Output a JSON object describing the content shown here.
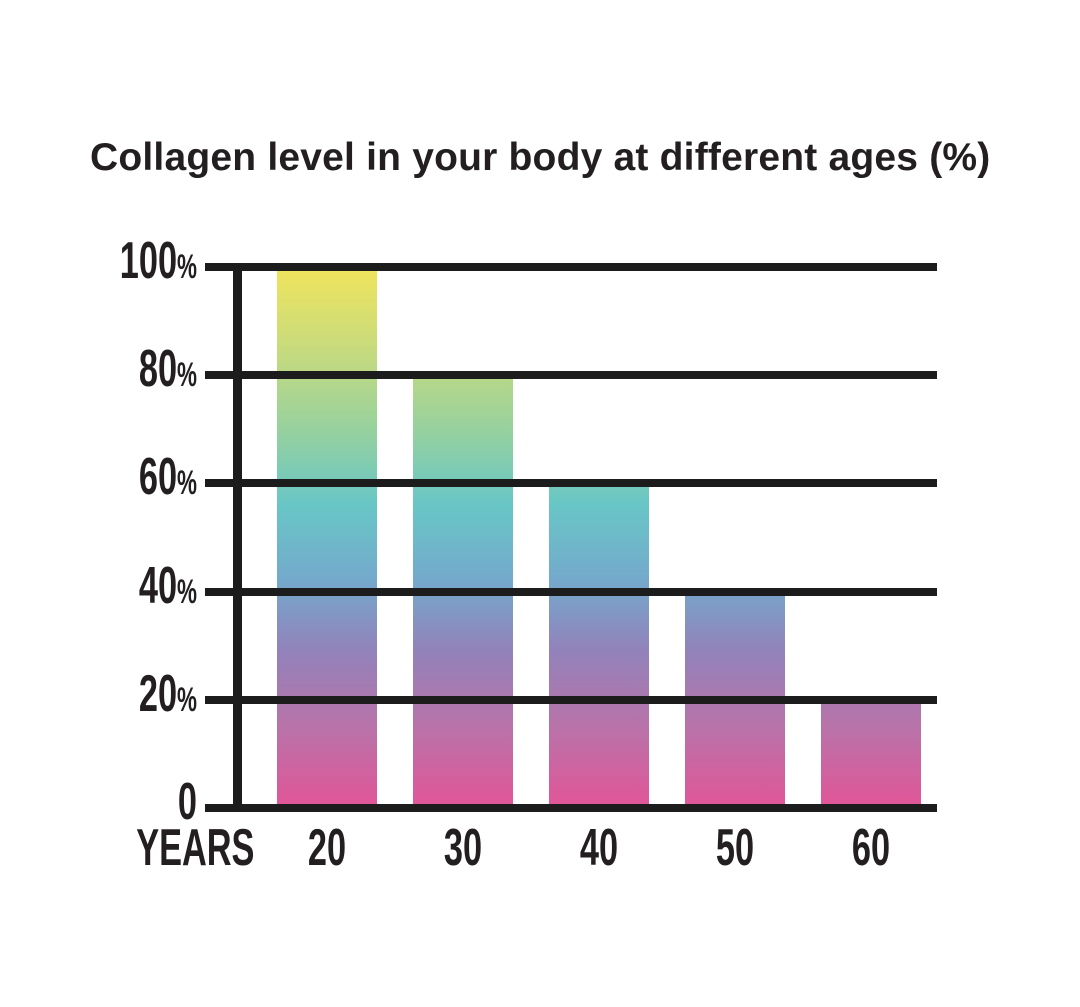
{
  "chart_data": {
    "type": "bar",
    "title": "Collagen level in your body at different ages (%)",
    "x_axis_label": "YEARS",
    "categories": [
      "20",
      "30",
      "40",
      "50",
      "60"
    ],
    "values": [
      100,
      80,
      60,
      40,
      20
    ],
    "y_tick_values": [
      100,
      80,
      60,
      40,
      20,
      0
    ],
    "y_tick_labels": [
      "100%",
      "80%",
      "60%",
      "40%",
      "20%",
      "0"
    ],
    "ylim": [
      0,
      100
    ],
    "grid": "horizontal-only, thick black lines drawn over bars",
    "legend": "none",
    "line_color": "#1d1c1c",
    "text_color": "#231f20",
    "background_color": "#ffffff",
    "bar_gradient_stops_top_to_bottom": [
      {
        "pos": 0,
        "color": "#f0e45c"
      },
      {
        "pos": 15,
        "color": "#c8db7c"
      },
      {
        "pos": 30,
        "color": "#97d19e"
      },
      {
        "pos": 44,
        "color": "#68c6c6"
      },
      {
        "pos": 58,
        "color": "#74a9cc"
      },
      {
        "pos": 71,
        "color": "#9282ba"
      },
      {
        "pos": 85,
        "color": "#b873a9"
      },
      {
        "pos": 100,
        "color": "#e25598"
      }
    ],
    "gradient_note": "single fixed vertical gradient anchored to full chart height; shorter bars reveal only the lower portion"
  }
}
